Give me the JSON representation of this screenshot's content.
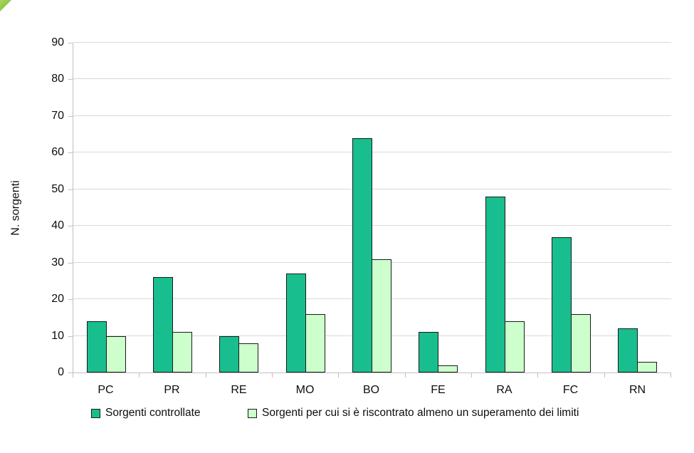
{
  "chart_data": {
    "type": "bar",
    "title": "",
    "xlabel": "",
    "ylabel": "N. sorgenti",
    "categories": [
      "PC",
      "PR",
      "RE",
      "MO",
      "BO",
      "FE",
      "RA",
      "FC",
      "RN"
    ],
    "series": [
      {
        "name": "Sorgenti controllate",
        "color": "#19be8e",
        "values": [
          14,
          26,
          10,
          27,
          64,
          11,
          48,
          37,
          12
        ]
      },
      {
        "name": "Sorgenti per cui si è riscontrato almeno un superamento dei limiti",
        "color": "#ccffcc",
        "values": [
          10,
          11,
          8,
          16,
          31,
          2,
          14,
          16,
          3
        ]
      }
    ],
    "ylim": [
      0,
      90
    ],
    "ytick_step": 10,
    "grid": true,
    "legend_position": "bottom",
    "colors": {
      "gridline": "#d9d9d9",
      "axis": "#bfbfbf",
      "bar_border": "#1a1a1a",
      "corner_decoration": "#8dc63f"
    }
  }
}
